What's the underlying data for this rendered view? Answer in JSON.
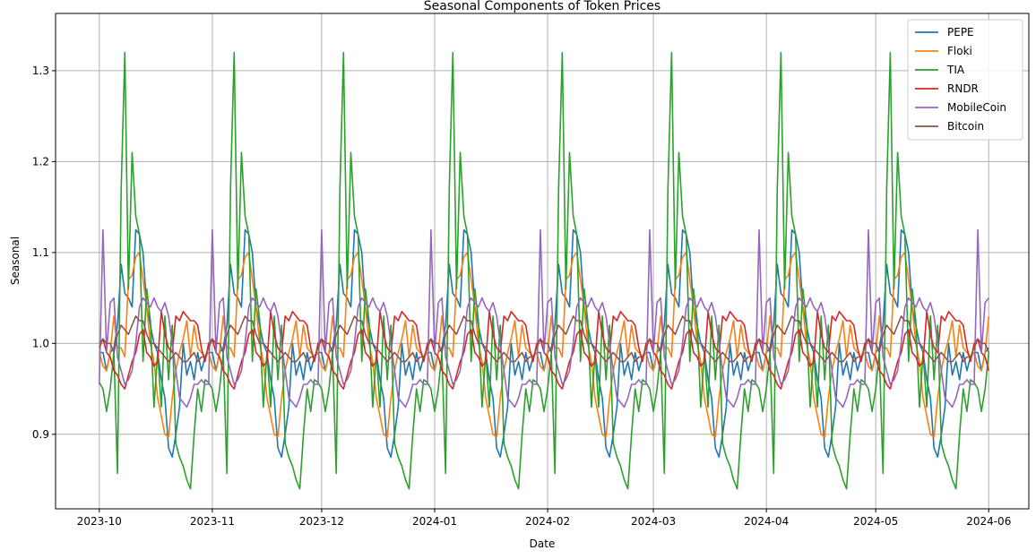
{
  "chart_data": {
    "type": "line",
    "title": "Seasonal Components of Token Prices",
    "xlabel": "Date",
    "ylabel": "Seasonal",
    "x_start": "2023-10-01",
    "x_end": "2024-06-01",
    "x_step": "1 day",
    "xlim": [
      "2023-09-19",
      "2024-06-12"
    ],
    "ylim": [
      0.818,
      1.363
    ],
    "xticks": [
      "2023-10",
      "2023-11",
      "2023-12",
      "2024-01",
      "2024-02",
      "2024-03",
      "2024-04",
      "2024-05",
      "2024-06"
    ],
    "yticks": [
      "0.9",
      "1.0",
      "1.1",
      "1.2",
      "1.3"
    ],
    "grid": true,
    "legend": "top-right",
    "period_days": 30,
    "series": [
      {
        "name": "PEPE",
        "color": "#1f77b4",
        "cycle": [
          0.99,
          0.99,
          0.97,
          0.99,
          0.995,
          1.02,
          1.087,
          1.055,
          1.05,
          1.04,
          1.125,
          1.12,
          1.1,
          1.04,
          1.02,
          1.0,
          0.99,
          0.96,
          0.94,
          0.885,
          0.875,
          0.9,
          0.93,
          1.0,
          0.965,
          0.98,
          0.96,
          0.99,
          0.97,
          0.985
        ]
      },
      {
        "name": "Floki",
        "color": "#ff7f0e",
        "cycle": [
          0.99,
          0.975,
          0.97,
          0.99,
          1.03,
          0.995,
          0.995,
          0.985,
          1.07,
          1.075,
          1.095,
          1.1,
          1.07,
          1.04,
          1.0,
          0.98,
          0.94,
          0.92,
          0.9,
          0.897,
          0.94,
          0.97,
          0.99,
          1.005,
          1.025,
          0.985,
          1.02,
          0.995,
          0.99,
          0.985
        ]
      },
      {
        "name": "TIA",
        "color": "#2ca02c",
        "cycle": [
          0.957,
          0.95,
          0.925,
          0.95,
          0.99,
          0.857,
          1.17,
          1.32,
          1.06,
          1.21,
          1.14,
          1.12,
          0.98,
          1.06,
          1.025,
          0.93,
          0.99,
          0.93,
          1.03,
          0.96,
          1.02,
          0.89,
          0.875,
          0.865,
          0.85,
          0.84,
          0.9,
          0.95,
          0.925,
          0.96
        ]
      },
      {
        "name": "RNDR",
        "color": "#d62728",
        "cycle": [
          1.0,
          1.005,
          0.99,
          0.985,
          0.97,
          0.965,
          0.955,
          0.95,
          0.965,
          0.98,
          0.99,
          1.01,
          1.015,
          0.99,
          0.985,
          0.975,
          0.98,
          1.035,
          1.01,
          0.995,
          0.99,
          1.03,
          1.025,
          1.035,
          1.03,
          1.025,
          1.025,
          1.02,
          0.995,
          0.98
        ]
      },
      {
        "name": "MobileCoin",
        "color": "#9467bd",
        "cycle": [
          0.955,
          1.125,
          0.99,
          1.045,
          1.05,
          0.985,
          0.97,
          0.955,
          0.96,
          0.97,
          1.0,
          1.04,
          1.05,
          1.045,
          1.04,
          1.05,
          1.04,
          1.035,
          1.045,
          1.03,
          1.0,
          0.97,
          0.94,
          0.935,
          0.93,
          0.94,
          0.955,
          0.955,
          0.96,
          0.955
        ]
      },
      {
        "name": "Bitcoin",
        "color": "#8c564b",
        "cycle": [
          0.995,
          1.005,
          1.0,
          1.0,
          0.99,
          1.01,
          1.02,
          1.015,
          1.01,
          1.02,
          1.03,
          1.025,
          1.025,
          1.01,
          1.0,
          1.0,
          0.995,
          0.99,
          0.985,
          0.98,
          0.985,
          0.99,
          0.985,
          0.98,
          0.98,
          0.985,
          0.99,
          0.98,
          0.985,
          0.985
        ]
      }
    ]
  }
}
